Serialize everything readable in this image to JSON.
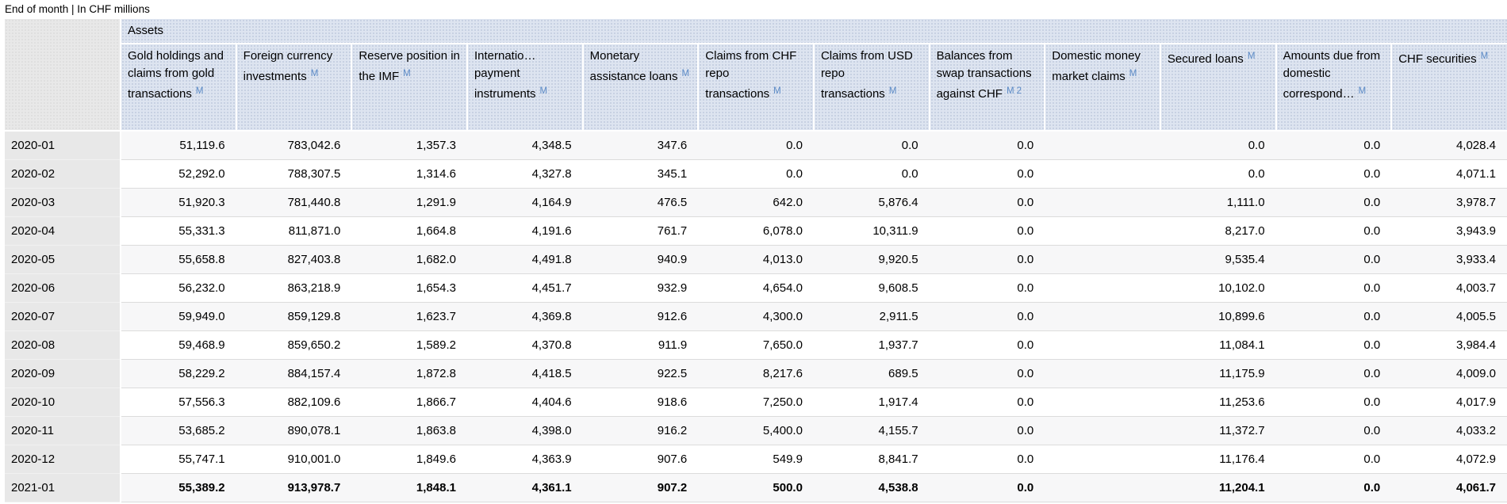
{
  "page": {
    "subtitle": "End of month | In CHF millions"
  },
  "colors": {
    "header_bg": "#dde4f0",
    "row_label_bg": "#e8e8e8",
    "alt_row_bg": "#f7f7f8",
    "metadata_link": "#5b8ac6"
  },
  "table": {
    "group_header": "Assets",
    "columns": [
      {
        "label": "Gold holdings and claims from gold transactions",
        "sup": "M"
      },
      {
        "label": "Foreign currency investments",
        "sup": "M"
      },
      {
        "label": "Reserve position in the IMF",
        "sup": "M"
      },
      {
        "label": "Internatio… payment instruments",
        "sup": "M"
      },
      {
        "label": "Monetary assistance loans",
        "sup": "M"
      },
      {
        "label": "Claims from CHF repo transactions",
        "sup": "M"
      },
      {
        "label": "Claims from USD repo transactions",
        "sup": "M"
      },
      {
        "label": "Balances from swap transactions against CHF",
        "sup": "M 2"
      },
      {
        "label": "Domestic money market claims",
        "sup": "M"
      },
      {
        "label": "Secured loans",
        "sup": "M"
      },
      {
        "label": "Amounts due from domestic correspond…",
        "sup": "M"
      },
      {
        "label": "CHF securities",
        "sup": "M"
      }
    ],
    "rows": [
      {
        "label": "2020-01",
        "bold": false,
        "values": [
          "51,119.6",
          "783,042.6",
          "1,357.3",
          "4,348.5",
          "347.6",
          "0.0",
          "0.0",
          "0.0",
          "",
          "0.0",
          "0.0",
          "4,028.4"
        ]
      },
      {
        "label": "2020-02",
        "bold": false,
        "values": [
          "52,292.0",
          "788,307.5",
          "1,314.6",
          "4,327.8",
          "345.1",
          "0.0",
          "0.0",
          "0.0",
          "",
          "0.0",
          "0.0",
          "4,071.1"
        ]
      },
      {
        "label": "2020-03",
        "bold": false,
        "values": [
          "51,920.3",
          "781,440.8",
          "1,291.9",
          "4,164.9",
          "476.5",
          "642.0",
          "5,876.4",
          "0.0",
          "",
          "1,111.0",
          "0.0",
          "3,978.7"
        ]
      },
      {
        "label": "2020-04",
        "bold": false,
        "values": [
          "55,331.3",
          "811,871.0",
          "1,664.8",
          "4,191.6",
          "761.7",
          "6,078.0",
          "10,311.9",
          "0.0",
          "",
          "8,217.0",
          "0.0",
          "3,943.9"
        ]
      },
      {
        "label": "2020-05",
        "bold": false,
        "values": [
          "55,658.8",
          "827,403.8",
          "1,682.0",
          "4,491.8",
          "940.9",
          "4,013.0",
          "9,920.5",
          "0.0",
          "",
          "9,535.4",
          "0.0",
          "3,933.4"
        ]
      },
      {
        "label": "2020-06",
        "bold": false,
        "values": [
          "56,232.0",
          "863,218.9",
          "1,654.3",
          "4,451.7",
          "932.9",
          "4,654.0",
          "9,608.5",
          "0.0",
          "",
          "10,102.0",
          "0.0",
          "4,003.7"
        ]
      },
      {
        "label": "2020-07",
        "bold": false,
        "values": [
          "59,949.0",
          "859,129.8",
          "1,623.7",
          "4,369.8",
          "912.6",
          "4,300.0",
          "2,911.5",
          "0.0",
          "",
          "10,899.6",
          "0.0",
          "4,005.5"
        ]
      },
      {
        "label": "2020-08",
        "bold": false,
        "values": [
          "59,468.9",
          "859,650.2",
          "1,589.2",
          "4,370.8",
          "911.9",
          "7,650.0",
          "1,937.7",
          "0.0",
          "",
          "11,084.1",
          "0.0",
          "3,984.4"
        ]
      },
      {
        "label": "2020-09",
        "bold": false,
        "values": [
          "58,229.2",
          "884,157.4",
          "1,872.8",
          "4,418.5",
          "922.5",
          "8,217.6",
          "689.5",
          "0.0",
          "",
          "11,175.9",
          "0.0",
          "4,009.0"
        ]
      },
      {
        "label": "2020-10",
        "bold": false,
        "values": [
          "57,556.3",
          "882,109.6",
          "1,866.7",
          "4,404.6",
          "918.6",
          "7,250.0",
          "1,917.4",
          "0.0",
          "",
          "11,253.6",
          "0.0",
          "4,017.9"
        ]
      },
      {
        "label": "2020-11",
        "bold": false,
        "values": [
          "53,685.2",
          "890,078.1",
          "1,863.8",
          "4,398.0",
          "916.2",
          "5,400.0",
          "4,155.7",
          "0.0",
          "",
          "11,372.7",
          "0.0",
          "4,033.2"
        ]
      },
      {
        "label": "2020-12",
        "bold": false,
        "values": [
          "55,747.1",
          "910,001.0",
          "1,849.6",
          "4,363.9",
          "907.6",
          "549.9",
          "8,841.7",
          "0.0",
          "",
          "11,176.4",
          "0.0",
          "4,072.9"
        ]
      },
      {
        "label": "2021-01",
        "bold": true,
        "values": [
          "55,389.2",
          "913,978.7",
          "1,848.1",
          "4,361.1",
          "907.2",
          "500.0",
          "4,538.8",
          "0.0",
          "",
          "11,204.1",
          "0.0",
          "4,061.7"
        ]
      }
    ]
  }
}
